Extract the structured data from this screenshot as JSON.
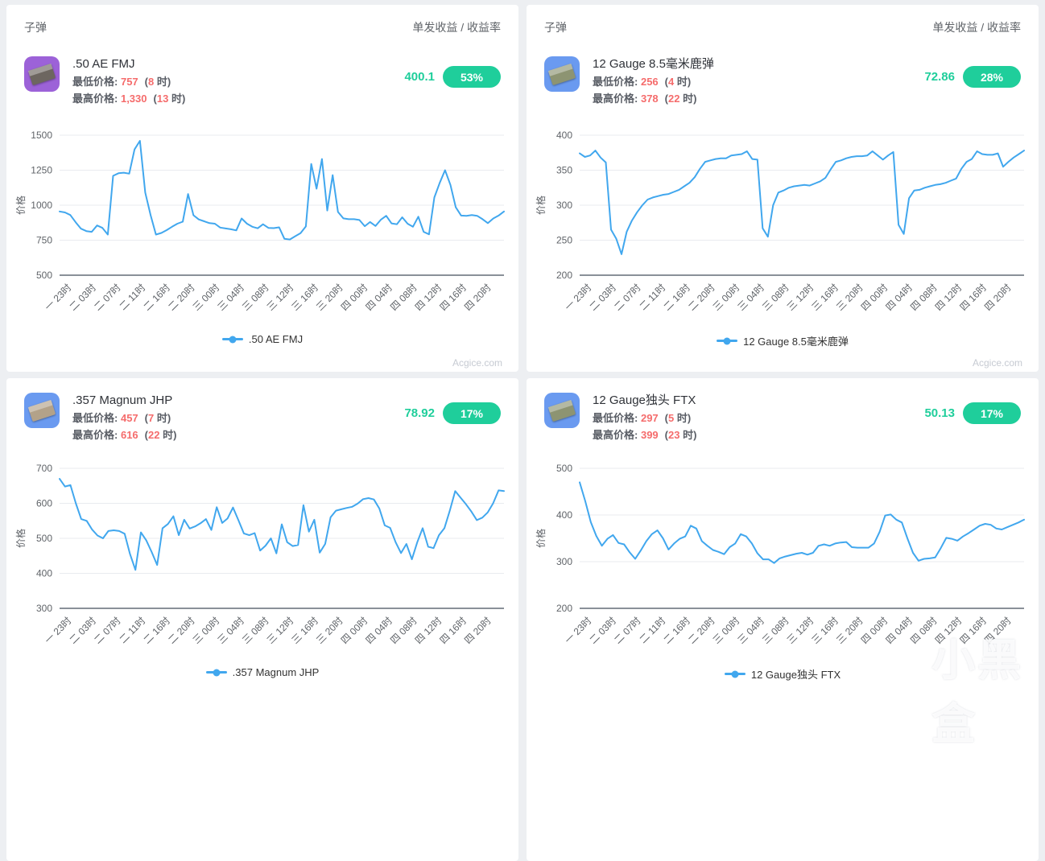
{
  "header": {
    "left": "子弹",
    "right": "单发收益 / 收益率"
  },
  "labels": {
    "min": "最低价格:",
    "max": "最高价格:",
    "open": "(",
    "close": " 时)"
  },
  "colors": {
    "accent_green": "#1fce9b",
    "price_red": "#f56c6c",
    "line_blue": "#41a7ee",
    "grid": "#e9ebef",
    "axis": "#8a9098",
    "text_dark": "#2f3238",
    "text_gray": "#5f6368",
    "watermark_gray": "#c6cad2",
    "page_bg": "#edeff2",
    "card_bg": "#ffffff",
    "icon_purple": "#9c62d8",
    "icon_blue": "#6a9af0"
  },
  "panels": [
    {
      "item": {
        "name": ".50 AE FMJ",
        "min_value": "757",
        "min_hour": "8",
        "max_value": "1,330",
        "max_hour": "13",
        "profit": "400.1",
        "rate": "53%",
        "icon_bg": "#9c62d8",
        "icon_box": "#6d6660"
      },
      "legend": ".50 AE FMJ",
      "watermark": "Acgice.com"
    },
    {
      "item": {
        "name": "12 Gauge 8.5毫米鹿弹",
        "min_value": "256",
        "min_hour": "4",
        "max_value": "378",
        "max_hour": "22",
        "profit": "72.86",
        "rate": "28%",
        "icon_bg": "#6a9af0",
        "icon_box": "#8d9472"
      },
      "legend": "12 Gauge 8.5毫米鹿弹",
      "watermark": "Acgice.com"
    },
    {
      "item": {
        "name": ".357 Magnum JHP",
        "min_value": "457",
        "min_hour": "7",
        "max_value": "616",
        "max_hour": "22",
        "profit": "78.92",
        "rate": "17%",
        "icon_bg": "#6a9af0",
        "icon_box": "#b3a289"
      },
      "legend": ".357 Magnum JHP"
    },
    {
      "item": {
        "name": "12 Gauge独头 FTX",
        "min_value": "297",
        "min_hour": "5",
        "max_value": "399",
        "max_hour": "23",
        "profit": "50.13",
        "rate": "17%",
        "icon_bg": "#6a9af0",
        "icon_box": "#8d9472"
      },
      "legend": "12 Gauge独头 FTX"
    }
  ],
  "overlay": {
    "watermark_text": "小黑盒",
    "watermark_logo": "heybox-cube-icon"
  },
  "chart_data": [
    {
      "type": "line",
      "title": ".50 AE FMJ",
      "ylabel": "价格",
      "ylim": [
        500,
        1500
      ],
      "yticks": [
        500,
        750,
        1000,
        1250,
        1500
      ],
      "x_labels": [
        "一 23时",
        "二 03时",
        "二 07时",
        "二 11时",
        "二 16时",
        "二 20时",
        "三 00时",
        "三 04时",
        "三 08时",
        "三 12时",
        "三 16时",
        "三 20时",
        "四 00时",
        "四 04时",
        "四 08时",
        "四 12时",
        "四 16时",
        "四 20时"
      ],
      "values": [
        955,
        948,
        930,
        878,
        832,
        815,
        810,
        855,
        838,
        790,
        1210,
        1228,
        1232,
        1225,
        1398,
        1460,
        1090,
        928,
        790,
        802,
        822,
        846,
        868,
        882,
        1080,
        928,
        898,
        885,
        872,
        868,
        840,
        834,
        828,
        820,
        905,
        868,
        846,
        835,
        864,
        838,
        836,
        842,
        760,
        755,
        778,
        800,
        848,
        1295,
        1118,
        1330,
        962,
        1215,
        952,
        906,
        900,
        900,
        894,
        850,
        880,
        852,
        896,
        924,
        870,
        864,
        914,
        868,
        846,
        918,
        810,
        792,
        1055,
        1160,
        1250,
        1145,
        985,
        926,
        924,
        930,
        924,
        900,
        872,
        905,
        926,
        955
      ],
      "legend_position": "bottom",
      "grid": true
    },
    {
      "type": "line",
      "title": "12 Gauge 8.5毫米鹿弹",
      "ylabel": "价格",
      "ylim": [
        200,
        400
      ],
      "yticks": [
        200,
        250,
        300,
        350,
        400
      ],
      "x_labels": [
        "一 23时",
        "二 03时",
        "二 07时",
        "二 11时",
        "二 16时",
        "二 20时",
        "三 00时",
        "三 04时",
        "三 08时",
        "三 12时",
        "三 16时",
        "三 20时",
        "四 00时",
        "四 04时",
        "四 08时",
        "四 12时",
        "四 16时",
        "四 20时"
      ],
      "values": [
        374,
        369,
        371,
        378,
        368,
        361,
        265,
        252,
        230,
        262,
        278,
        290,
        300,
        308,
        311,
        313,
        315,
        316,
        319,
        322,
        327,
        332,
        340,
        352,
        362,
        364,
        366,
        367,
        367,
        371,
        372,
        373,
        377,
        366,
        365,
        267,
        255,
        300,
        318,
        321,
        325,
        327,
        328,
        329,
        328,
        331,
        334,
        339,
        351,
        362,
        364,
        367,
        369,
        370,
        370,
        371,
        377,
        371,
        365,
        371,
        376,
        272,
        259,
        310,
        321,
        322,
        325,
        327,
        329,
        330,
        332,
        335,
        338,
        352,
        362,
        366,
        377,
        373,
        372,
        372,
        374,
        355,
        362,
        368,
        373,
        378
      ],
      "legend_position": "bottom",
      "grid": true
    },
    {
      "type": "line",
      "title": ".357 Magnum JHP",
      "ylabel": "价格",
      "ylim": [
        300,
        700
      ],
      "yticks": [
        300,
        400,
        500,
        600,
        700
      ],
      "x_labels": [
        "一 23时",
        "二 03时",
        "二 07时",
        "二 11时",
        "二 16时",
        "二 20时",
        "三 00时",
        "三 04时",
        "三 08时",
        "三 12时",
        "三 16时",
        "三 20时",
        "四 00时",
        "四 04时",
        "四 08时",
        "四 12时",
        "四 16时",
        "四 20时"
      ],
      "values": [
        670,
        648,
        652,
        600,
        555,
        550,
        525,
        508,
        500,
        521,
        523,
        521,
        513,
        455,
        410,
        517,
        494,
        461,
        424,
        529,
        541,
        563,
        509,
        553,
        528,
        534,
        543,
        555,
        524,
        589,
        544,
        557,
        588,
        552,
        514,
        509,
        515,
        465,
        479,
        500,
        457,
        540,
        489,
        478,
        481,
        595,
        519,
        553,
        459,
        484,
        560,
        579,
        583,
        587,
        590,
        599,
        612,
        615,
        611,
        585,
        537,
        530,
        489,
        458,
        484,
        440,
        489,
        529,
        476,
        472,
        509,
        529,
        579,
        635,
        616,
        597,
        576,
        552,
        559,
        574,
        600,
        637,
        635
      ],
      "legend_position": "bottom",
      "grid": true
    },
    {
      "type": "line",
      "title": "12 Gauge独头 FTX",
      "ylabel": "价格",
      "ylim": [
        200,
        500
      ],
      "yticks": [
        200,
        300,
        400,
        500
      ],
      "x_labels": [
        "一 23时",
        "二 03时",
        "二 07时",
        "二 11时",
        "二 16时",
        "二 20时",
        "三 00时",
        "三 04时",
        "三 08时",
        "三 12时",
        "三 16时",
        "三 20时",
        "四 00时",
        "四 04时",
        "四 08时",
        "四 12时",
        "四 16时",
        "四 20时"
      ],
      "values": [
        470,
        430,
        385,
        355,
        334,
        349,
        357,
        340,
        337,
        320,
        306,
        324,
        344,
        359,
        367,
        350,
        326,
        339,
        349,
        354,
        377,
        371,
        344,
        334,
        325,
        321,
        316,
        331,
        339,
        359,
        354,
        339,
        318,
        305,
        305,
        297,
        307,
        311,
        314,
        317,
        319,
        315,
        319,
        334,
        337,
        334,
        339,
        341,
        342,
        331,
        330,
        330,
        330,
        339,
        364,
        399,
        401,
        390,
        384,
        350,
        319,
        302,
        306,
        307,
        309,
        329,
        351,
        349,
        345,
        354,
        361,
        369,
        377,
        381,
        379,
        371,
        369,
        374,
        379,
        384,
        390
      ],
      "legend_position": "bottom",
      "grid": true
    }
  ]
}
